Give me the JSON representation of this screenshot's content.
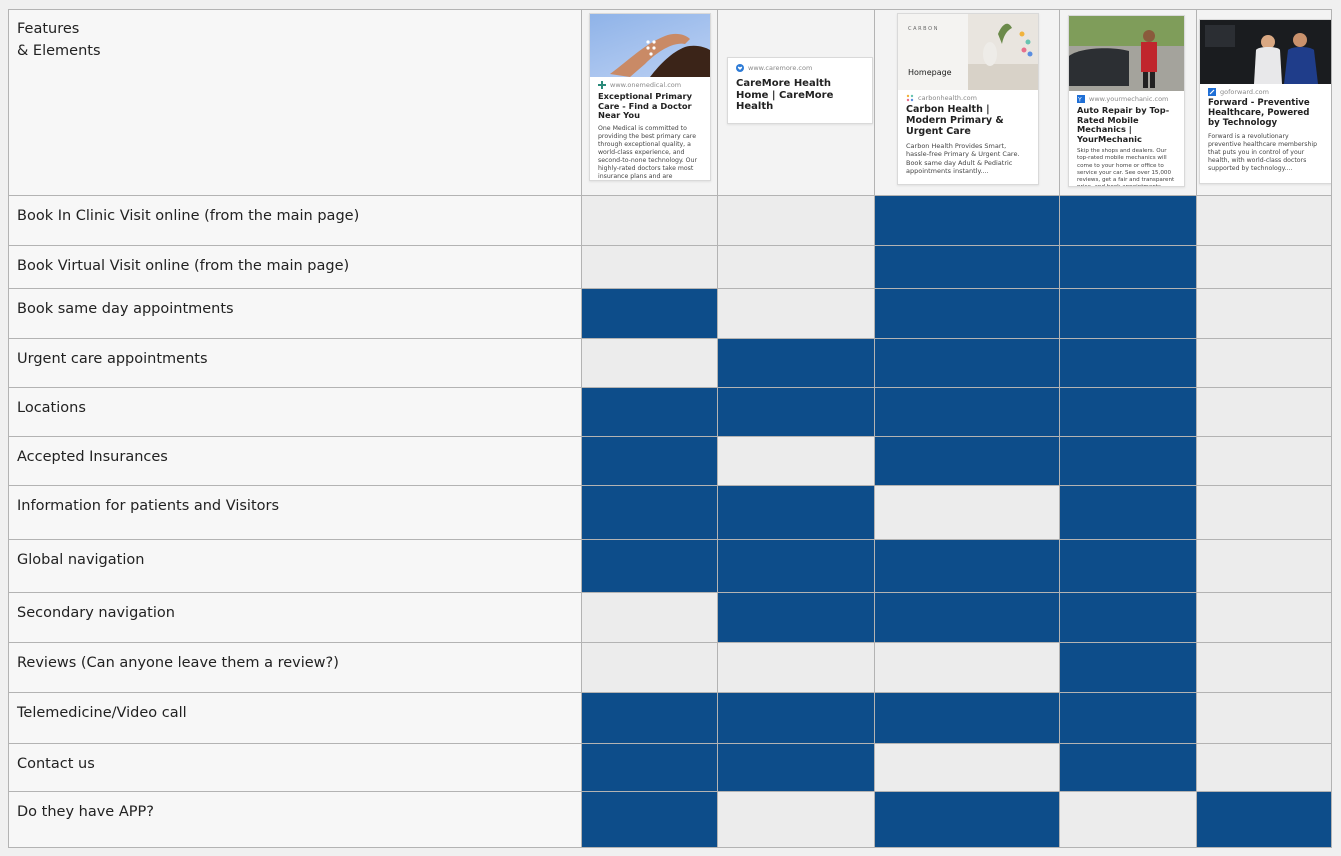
{
  "header": {
    "label": "Features\n& Elements"
  },
  "cards": [
    {
      "domain": "www.onemedical.com",
      "title": "Exceptional Primary Care - Find a Doctor Near You",
      "description": "One Medical is committed to providing the best primary care through exceptional quality, a world-class experience, and second-to-none technology. Our highly-rated doctors take most insurance plans and are accepting new patients....",
      "image": "hands-photo"
    },
    {
      "domain": "www.caremore.com",
      "title": "CareMore Health Home | CareMore Health",
      "description": "",
      "image": ""
    },
    {
      "domain": "carbonhealth.com",
      "title": "Carbon Health | Modern Primary & Urgent Care",
      "description": "Carbon Health Provides Smart, hassle-free Primary & Urgent Care. Book same day Adult & Pediatric appointments instantly....",
      "image": "homepage-photo",
      "image_caption": "Homepage"
    },
    {
      "domain": "www.yourmechanic.com",
      "title": "Auto Repair by Top-Rated Mobile Mechanics | YourMechanic",
      "description": "Skip the shops and dealers. Our top-rated mobile mechanics will come to your home or office to service your car. See over 15,000 reviews, get a fair and transparent price, and book appointments online....",
      "image": "mechanic-photo"
    },
    {
      "domain": "goforward.com",
      "title": "Forward - Preventive Healthcare, Powered by Technology",
      "description": "Forward is a revolutionary preventive healthcare membership that puts you in control of your health, with world-class doctors supported by technology....",
      "image": "doctors-photo"
    }
  ],
  "rows": [
    {
      "feature": "Book In Clinic Visit online (from the main page)",
      "values": [
        false,
        false,
        true,
        true,
        false
      ]
    },
    {
      "feature": "Book Virtual Visit online (from the main page)",
      "values": [
        false,
        false,
        true,
        true,
        false
      ]
    },
    {
      "feature": "Book same day appointments",
      "values": [
        true,
        false,
        true,
        true,
        false
      ]
    },
    {
      "feature": "Urgent care appointments",
      "values": [
        false,
        true,
        true,
        true,
        false
      ]
    },
    {
      "feature": "Locations",
      "values": [
        true,
        true,
        true,
        true,
        false
      ]
    },
    {
      "feature": "Accepted Insurances",
      "values": [
        true,
        false,
        true,
        true,
        false
      ]
    },
    {
      "feature": "Information for patients and Visitors",
      "values": [
        true,
        true,
        false,
        true,
        false
      ]
    },
    {
      "feature": "Global navigation",
      "values": [
        true,
        true,
        true,
        true,
        false
      ]
    },
    {
      "feature": "Secondary navigation",
      "values": [
        false,
        true,
        true,
        true,
        false
      ]
    },
    {
      "feature": "Reviews (Can anyone leave them a review?)",
      "values": [
        false,
        false,
        false,
        true,
        false
      ]
    },
    {
      "feature": "Telemedicine/Video call",
      "values": [
        true,
        true,
        true,
        true,
        false
      ]
    },
    {
      "feature": "Contact us",
      "values": [
        true,
        true,
        false,
        true,
        false
      ]
    },
    {
      "feature": "Do they have APP?",
      "values": [
        true,
        false,
        true,
        false,
        true
      ]
    }
  ],
  "colors": {
    "filled": "#0d4d8a",
    "empty": "#ececec",
    "grid": "#b3b3b3",
    "label_bg": "#f7f7f7"
  }
}
